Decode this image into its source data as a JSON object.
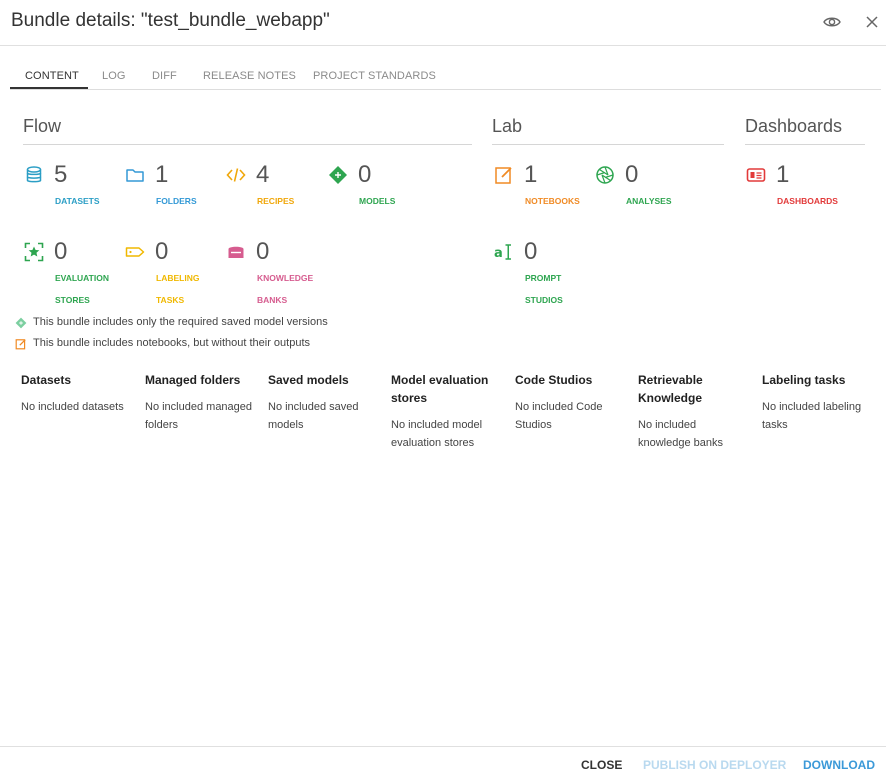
{
  "header": {
    "title": "Bundle details: \"test_bundle_webapp\"",
    "icons": [
      "eye-icon",
      "close-icon"
    ]
  },
  "tabs": [
    {
      "label": "CONTENT",
      "active": true
    },
    {
      "label": "LOG"
    },
    {
      "label": "DIFF"
    },
    {
      "label": "RELEASE NOTES"
    },
    {
      "label": "PROJECT STANDARDS"
    }
  ],
  "sections": {
    "flow": "Flow",
    "lab": "Lab",
    "dashboards": "Dashboards"
  },
  "stats": {
    "datasets": {
      "count": "5",
      "label": "DATASETS",
      "color": "#2b9ec5",
      "icon": "database-icon"
    },
    "folders": {
      "count": "1",
      "label": "FOLDERS",
      "color": "#3399d6",
      "icon": "folder-icon"
    },
    "recipes": {
      "count": "4",
      "label": "RECIPES",
      "color": "#f0a70a",
      "icon": "code-icon"
    },
    "models": {
      "count": "0",
      "label": "MODELS",
      "color": "#2ea550",
      "icon": "model-diamond-icon"
    },
    "evaluation_stores": {
      "count": "0",
      "label": "EVALUATION STORES",
      "color": "#2ea550",
      "icon": "evaluation-store-icon"
    },
    "labeling_tasks": {
      "count": "0",
      "label": "LABELING TASKS",
      "color": "#f0b800",
      "icon": "tag-icon"
    },
    "knowledge_banks": {
      "count": "0",
      "label": "KNOWLEDGE BANKS",
      "color": "#d65c8f",
      "icon": "knowledge-bank-icon"
    },
    "notebooks": {
      "count": "1",
      "label": "NOTEBOOKS",
      "color": "#f08a24",
      "icon": "notebook-icon"
    },
    "analyses": {
      "count": "0",
      "label": "ANALYSES",
      "color": "#2ea550",
      "icon": "analysis-aperture-icon"
    },
    "prompt_studios": {
      "count": "0",
      "label": "PROMPT STUDIOS",
      "color": "#2ea550",
      "icon": "prompt-studio-icon"
    },
    "dashboards": {
      "count": "1",
      "label": "DASHBOARDS",
      "color": "#e23a3a",
      "icon": "dashboard-icon"
    }
  },
  "notes": [
    {
      "text": "This bundle includes only the required saved model versions",
      "icon": "model-diamond-icon"
    },
    {
      "text": "This bundle includes notebooks, but without their outputs",
      "icon": "notebook-icon"
    }
  ],
  "columns": [
    {
      "title": "Datasets",
      "body": "No included datasets"
    },
    {
      "title": "Managed folders",
      "body": "No included managed folders"
    },
    {
      "title": "Saved models",
      "body": "No included saved models"
    },
    {
      "title": "Model evaluation stores",
      "body": "No included model evaluation stores"
    },
    {
      "title": "Code Studios",
      "body": "No included Code Studios"
    },
    {
      "title": "Retrievable Knowledge",
      "body": "No included knowledge banks"
    },
    {
      "title": "Labeling tasks",
      "body": "No included labeling tasks"
    }
  ],
  "footer": {
    "close": "CLOSE",
    "publish": "PUBLISH ON DEPLOYER",
    "download": "DOWNLOAD"
  }
}
